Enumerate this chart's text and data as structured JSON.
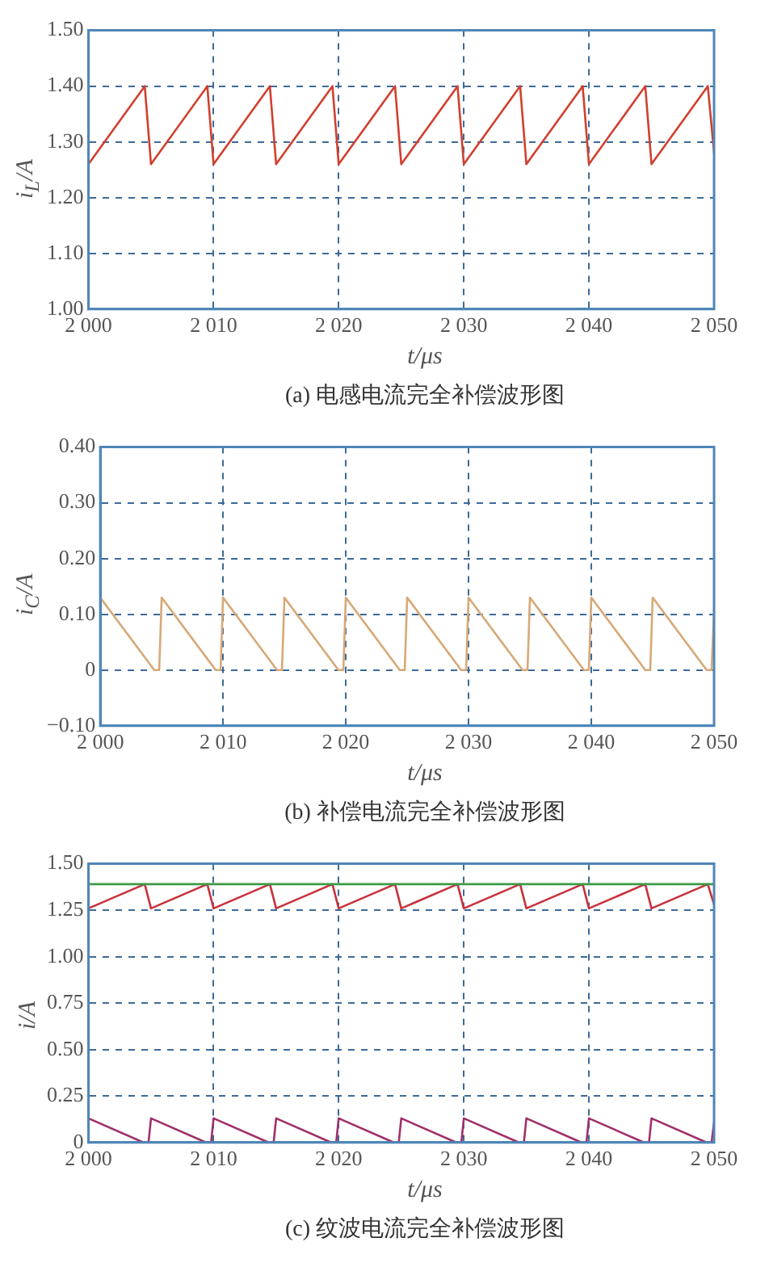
{
  "chart_data": [
    {
      "type": "line",
      "title": "(a) 电感电流完全补偿波形图",
      "xlabel": "t/μs",
      "ylabel": "i$_{L}$/A",
      "xlim": [
        2000,
        2050
      ],
      "ylim": [
        1.0,
        1.5
      ],
      "xticks": [
        {
          "value": 2000,
          "label": "2 000"
        },
        {
          "value": 2010,
          "label": "2 010"
        },
        {
          "value": 2020,
          "label": "2 020"
        },
        {
          "value": 2030,
          "label": "2 030"
        },
        {
          "value": 2040,
          "label": "2 040"
        },
        {
          "value": 2050,
          "label": "2 050"
        }
      ],
      "yticks": [
        {
          "value": 1.0,
          "label": "1.00"
        },
        {
          "value": 1.1,
          "label": "1.10"
        },
        {
          "value": 1.2,
          "label": "1.20"
        },
        {
          "value": 1.3,
          "label": "1.30"
        },
        {
          "value": 1.4,
          "label": "1.40"
        },
        {
          "value": 1.5,
          "label": "1.50"
        }
      ],
      "grid": true,
      "series": [
        {
          "color": "#d0402e",
          "x": [
            2000,
            2004.5,
            2005,
            2009.5,
            2010,
            2014.5,
            2015,
            2019.5,
            2020,
            2024.5,
            2025,
            2029.5,
            2030,
            2034.5,
            2035,
            2039.5,
            2040,
            2044.5,
            2045,
            2049.5,
            2050
          ],
          "values": [
            1.26,
            1.4,
            1.26,
            1.4,
            1.26,
            1.4,
            1.26,
            1.4,
            1.26,
            1.4,
            1.26,
            1.4,
            1.26,
            1.4,
            1.26,
            1.4,
            1.26,
            1.4,
            1.26,
            1.4,
            1.28
          ]
        }
      ]
    },
    {
      "type": "line",
      "title": "(b) 补偿电流完全补偿波形图",
      "xlabel": "t/μs",
      "ylabel": "i$_{C}$/A",
      "xlim": [
        2000,
        2050
      ],
      "ylim": [
        -0.1,
        0.4
      ],
      "xticks": [
        {
          "value": 2000,
          "label": "2 000"
        },
        {
          "value": 2010,
          "label": "2 010"
        },
        {
          "value": 2020,
          "label": "2 020"
        },
        {
          "value": 2030,
          "label": "2 030"
        },
        {
          "value": 2040,
          "label": "2 040"
        },
        {
          "value": 2050,
          "label": "2 050"
        }
      ],
      "yticks": [
        {
          "value": -0.1,
          "label": "−0.10"
        },
        0,
        {
          "value": 0.1,
          "label": "0.10"
        },
        {
          "value": 0.2,
          "label": "0.20"
        },
        {
          "value": 0.3,
          "label": "0.30"
        },
        {
          "value": 0.4,
          "label": "0.40"
        }
      ],
      "grid": true,
      "series": [
        {
          "color": "#d8a877",
          "x": [
            2000,
            2004.4,
            2004.8,
            2005,
            2009.4,
            2009.8,
            2010,
            2014.4,
            2014.8,
            2015,
            2019.4,
            2019.8,
            2020,
            2024.4,
            2024.8,
            2025,
            2029.4,
            2029.8,
            2030,
            2034.4,
            2034.8,
            2035,
            2039.4,
            2039.8,
            2040,
            2044.4,
            2044.8,
            2045,
            2049.4,
            2049.8,
            2050
          ],
          "values": [
            0.13,
            0,
            0,
            0.13,
            0,
            0,
            0.13,
            0,
            0,
            0.13,
            0,
            0,
            0.13,
            0,
            0,
            0.13,
            0,
            0,
            0.13,
            0,
            0,
            0.13,
            0,
            0,
            0.13,
            0,
            0,
            0.13,
            0,
            0,
            0.11
          ]
        }
      ]
    },
    {
      "type": "line",
      "title": "(c) 纹波电流完全补偿波形图",
      "xlabel": "t/μs",
      "ylabel": "i/A",
      "xlim": [
        2000,
        2050
      ],
      "ylim": [
        0,
        1.5
      ],
      "xticks": [
        {
          "value": 2000,
          "label": "2 000"
        },
        {
          "value": 2010,
          "label": "2 010"
        },
        {
          "value": 2020,
          "label": "2 020"
        },
        {
          "value": 2030,
          "label": "2 030"
        },
        {
          "value": 2040,
          "label": "2 040"
        },
        {
          "value": 2050,
          "label": "2 050"
        }
      ],
      "yticks": [
        0,
        0.25,
        {
          "value": 0.5,
          "label": "0.50"
        },
        0.75,
        {
          "value": 1.0,
          "label": "1.00"
        },
        1.25,
        {
          "value": 1.5,
          "label": "1.50"
        }
      ],
      "grid": true,
      "series": [
        {
          "color": "#3c9a46",
          "x": [
            2000,
            2050
          ],
          "values": [
            1.39,
            1.39
          ]
        },
        {
          "color": "#c8323c",
          "x": [
            2000,
            2004.5,
            2005,
            2009.5,
            2010,
            2014.5,
            2015,
            2019.5,
            2020,
            2024.5,
            2025,
            2029.5,
            2030,
            2034.5,
            2035,
            2039.5,
            2040,
            2044.5,
            2045,
            2049.5,
            2050
          ],
          "values": [
            1.26,
            1.39,
            1.26,
            1.39,
            1.26,
            1.39,
            1.26,
            1.39,
            1.26,
            1.39,
            1.26,
            1.39,
            1.26,
            1.39,
            1.26,
            1.39,
            1.26,
            1.39,
            1.26,
            1.39,
            1.28
          ]
        },
        {
          "color": "#a0306a",
          "x": [
            2000,
            2004.4,
            2004.8,
            2005,
            2009.4,
            2009.8,
            2010,
            2014.4,
            2014.8,
            2015,
            2019.4,
            2019.8,
            2020,
            2024.4,
            2024.8,
            2025,
            2029.4,
            2029.8,
            2030,
            2034.4,
            2034.8,
            2035,
            2039.4,
            2039.8,
            2040,
            2044.4,
            2044.8,
            2045,
            2049.4,
            2049.8,
            2050
          ],
          "values": [
            0.13,
            0,
            0,
            0.13,
            0,
            0,
            0.13,
            0,
            0,
            0.13,
            0,
            0,
            0.13,
            0,
            0,
            0.13,
            0,
            0,
            0.13,
            0,
            0,
            0.13,
            0,
            0,
            0.13,
            0,
            0,
            0.13,
            0,
            0,
            0.11
          ]
        }
      ]
    }
  ]
}
